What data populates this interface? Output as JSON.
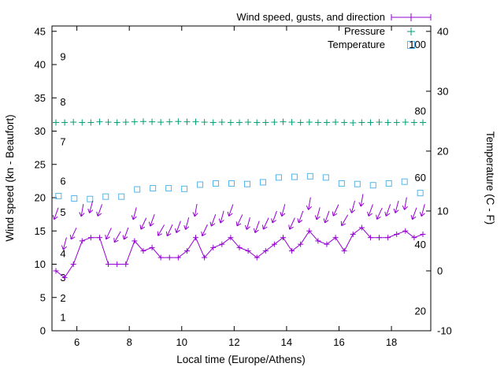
{
  "background": "#ffffff",
  "chart_data": {
    "type": "line",
    "title": "",
    "xlabel": "Local time (Europe/Athens)",
    "ylabel_left": "Wind speed (kn - Beaufort)",
    "ylabel_right": "Temperature (C - F)",
    "xrange": [
      5.05,
      19.5
    ],
    "kn_range": [
      0,
      45.8
    ],
    "c_range": [
      -10,
      40.9
    ],
    "x_ticks": [
      6,
      8,
      10,
      12,
      14,
      16,
      18
    ],
    "left_ticks": [
      0,
      5,
      10,
      15,
      20,
      25,
      30,
      35,
      40,
      45
    ],
    "right_ticks": [
      -10,
      0,
      10,
      20,
      30,
      40
    ],
    "beaufort_scale_labels": [
      {
        "label": "1",
        "kn": 2.0
      },
      {
        "label": "2",
        "kn": 4.9
      },
      {
        "label": "3",
        "kn": 8.0
      },
      {
        "label": "4",
        "kn": 11.6
      },
      {
        "label": "5",
        "kn": 17.8
      },
      {
        "label": "6",
        "kn": 22.5
      },
      {
        "label": "7",
        "kn": 28.4
      },
      {
        "label": "8",
        "kn": 34.4
      },
      {
        "label": "9",
        "kn": 41.2
      }
    ],
    "fahrenheit_scale_labels": [
      {
        "label": "20",
        "c": -6.7
      },
      {
        "label": "40",
        "c": 4.4
      },
      {
        "label": "60",
        "c": 15.6
      },
      {
        "label": "80",
        "c": 26.7
      },
      {
        "label": "100",
        "c": 37.8
      }
    ],
    "legend": [
      {
        "label": "Wind speed, gusts, and direction",
        "color": "#9400d3",
        "marker": "errorbar-line"
      },
      {
        "label": "Pressure",
        "color": "#009e73",
        "marker": "plus"
      },
      {
        "label": "Temperature",
        "color": "#56b4e9",
        "marker": "square"
      }
    ],
    "series": {
      "wind": {
        "name": "Wind speed (kn)",
        "color": "#9400d3",
        "x": [
          5.2,
          5.533,
          5.867,
          6.2,
          6.533,
          6.867,
          7.2,
          7.533,
          7.867,
          8.2,
          8.533,
          8.867,
          9.2,
          9.533,
          9.867,
          10.2,
          10.533,
          10.867,
          11.2,
          11.533,
          11.867,
          12.2,
          12.533,
          12.867,
          13.2,
          13.533,
          13.867,
          14.2,
          14.533,
          14.867,
          15.2,
          15.533,
          15.867,
          16.2,
          16.533,
          16.867,
          17.2,
          17.533,
          17.867,
          18.2,
          18.533,
          18.867,
          19.2
        ],
        "values": [
          9,
          8,
          10,
          13.5,
          14,
          14,
          10,
          10,
          10,
          13.5,
          12,
          12.5,
          11,
          11,
          11,
          12,
          14,
          11,
          12.5,
          13,
          14,
          12.5,
          12,
          11,
          12,
          13,
          14,
          12,
          13,
          15,
          13.5,
          13,
          14,
          12,
          14.5,
          15.5,
          14,
          14,
          14,
          14.5,
          15,
          14,
          14.5
        ],
        "gusts": [
          17.5,
          13,
          14.5,
          18,
          18.5,
          18,
          14.5,
          14,
          14.5,
          17.5,
          16,
          16.5,
          15,
          15,
          15.5,
          16,
          18,
          15,
          16.5,
          17,
          18,
          16.5,
          16,
          15.5,
          16,
          17,
          18,
          16,
          17,
          19,
          17.5,
          17,
          18,
          16.5,
          18.5,
          19.5,
          18,
          17.5,
          18,
          18.5,
          19,
          17.5,
          18
        ],
        "directions_deg": [
          20,
          15,
          25,
          10,
          15,
          20,
          25,
          30,
          20,
          15,
          25,
          20,
          30,
          25,
          20,
          15,
          10,
          25,
          20,
          15,
          20,
          25,
          15,
          20,
          25,
          20,
          15,
          25,
          20,
          10,
          15,
          20,
          25,
          30,
          15,
          10,
          20,
          25,
          20,
          15,
          10,
          20,
          15
        ]
      },
      "pressure": {
        "name": "Pressure",
        "color": "#009e73",
        "x": [
          5.2,
          5.533,
          5.867,
          6.2,
          6.533,
          6.867,
          7.2,
          7.533,
          7.867,
          8.2,
          8.533,
          8.867,
          9.2,
          9.533,
          9.867,
          10.2,
          10.533,
          10.867,
          11.2,
          11.533,
          11.867,
          12.2,
          12.533,
          12.867,
          13.2,
          13.533,
          13.867,
          14.2,
          14.533,
          14.867,
          15.2,
          15.533,
          15.867,
          16.2,
          16.533,
          16.867,
          17.2,
          17.533,
          17.867,
          18.2,
          18.533,
          18.867,
          19.2
        ],
        "values_kn_axis": [
          31.3,
          31.3,
          31.35,
          31.3,
          31.3,
          31.4,
          31.35,
          31.3,
          31.35,
          31.4,
          31.45,
          31.4,
          31.35,
          31.4,
          31.45,
          31.4,
          31.4,
          31.35,
          31.3,
          31.35,
          31.3,
          31.3,
          31.35,
          31.3,
          31.3,
          31.35,
          31.4,
          31.35,
          31.3,
          31.35,
          31.3,
          31.3,
          31.35,
          31.3,
          31.25,
          31.3,
          31.3,
          31.35,
          31.3,
          31.3,
          31.35,
          31.3,
          31.3
        ]
      },
      "temperature": {
        "name": "Temperature (C)",
        "color": "#56b4e9",
        "x": [
          5.3,
          5.9,
          6.5,
          7.1,
          7.7,
          8.3,
          8.9,
          9.5,
          10.1,
          10.7,
          11.3,
          11.9,
          12.5,
          13.1,
          13.7,
          14.3,
          14.9,
          15.5,
          16.1,
          16.7,
          17.3,
          17.9,
          18.5,
          19.1
        ],
        "values_c": [
          12.5,
          12.1,
          12.0,
          12.4,
          12.4,
          13.6,
          13.8,
          13.8,
          13.7,
          14.4,
          14.6,
          14.6,
          14.5,
          14.8,
          15.6,
          15.7,
          15.8,
          15.6,
          14.6,
          14.5,
          14.3,
          14.6,
          14.9,
          13.0
        ]
      }
    }
  }
}
